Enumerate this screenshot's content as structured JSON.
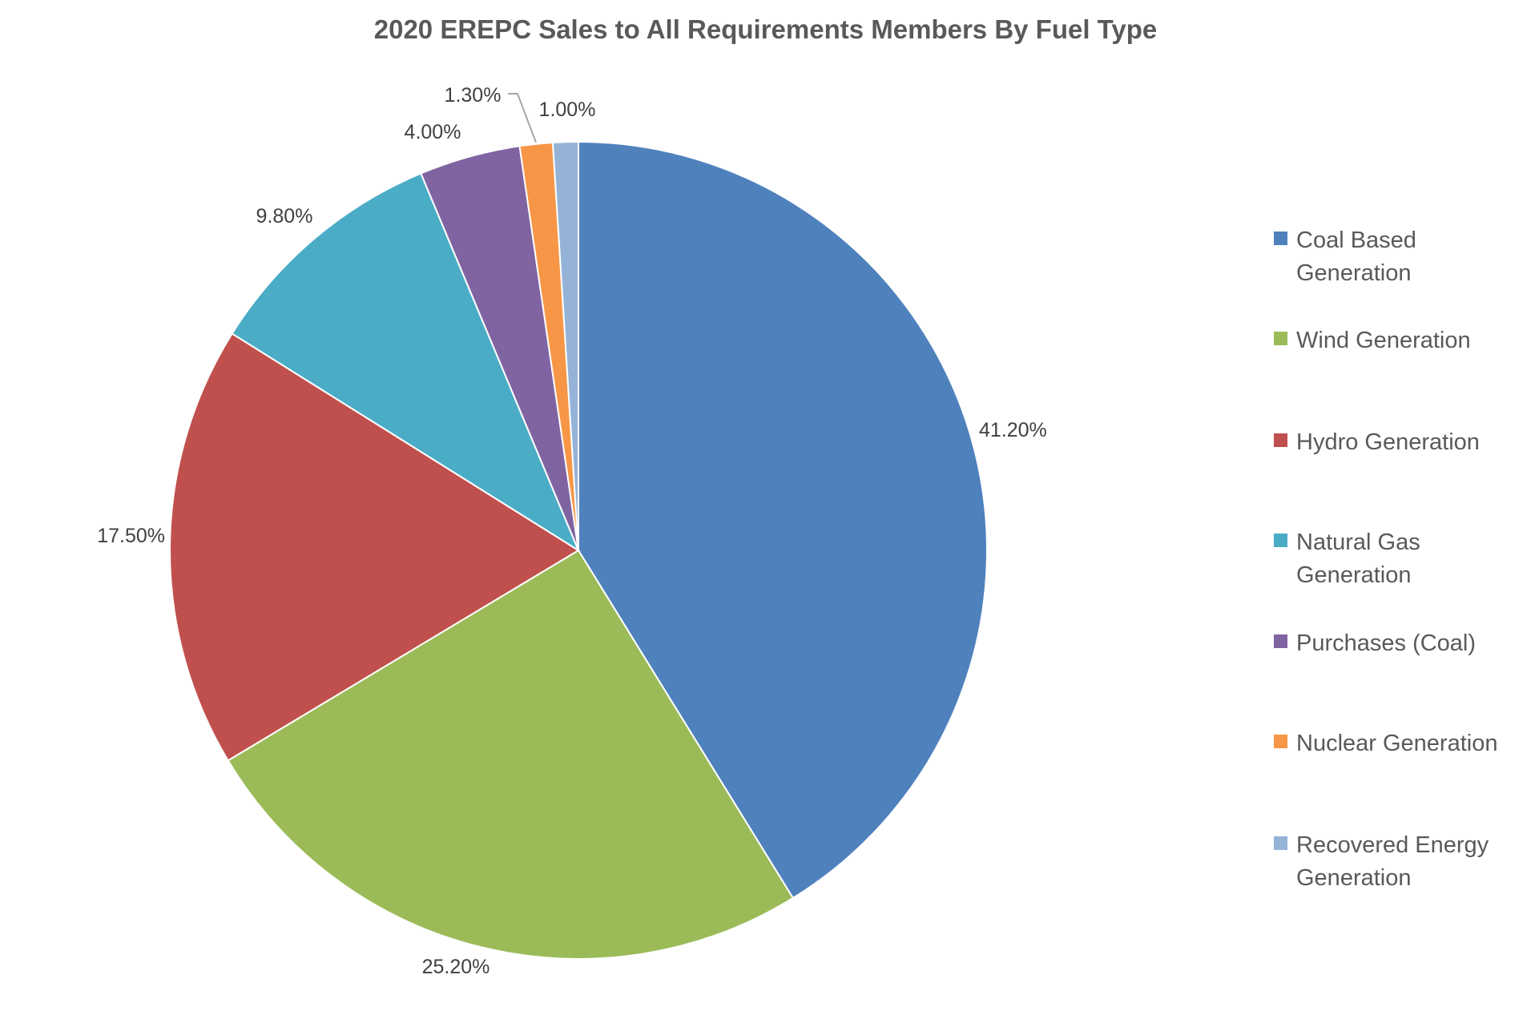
{
  "chart_data": {
    "type": "pie",
    "title": "2020 EREPC Sales to All Requirements Members By Fuel Type",
    "slices": [
      {
        "name": "Coal Based Generation",
        "value": 41.2,
        "label": "41.20%",
        "color": "#4F81BD"
      },
      {
        "name": "Wind Generation",
        "value": 25.2,
        "label": "25.20%",
        "color": "#9BBB59"
      },
      {
        "name": "Hydro Generation",
        "value": 17.5,
        "label": "17.50%",
        "color": "#C0504D"
      },
      {
        "name": "Natural Gas Generation",
        "value": 9.8,
        "label": "9.80%",
        "color": "#4BACC6"
      },
      {
        "name": "Purchases (Coal)",
        "value": 4.0,
        "label": "4.00%",
        "color": "#8064A2"
      },
      {
        "name": "Nuclear Generation",
        "value": 1.3,
        "label": "1.30%",
        "color": "#F79646"
      },
      {
        "name": "Recovered Energy Generation",
        "value": 1.0,
        "label": "1.00%",
        "color": "#95B3D7"
      }
    ],
    "start_angle": "12 o'clock",
    "direction": "clockwise",
    "legend_position": "right"
  }
}
